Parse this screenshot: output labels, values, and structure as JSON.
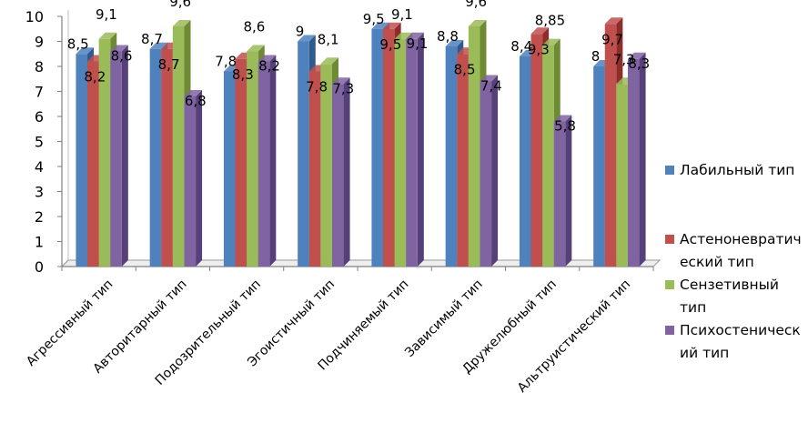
{
  "chart_data": {
    "type": "bar",
    "title": "",
    "xlabel": "",
    "ylabel": "",
    "ylim": [
      0,
      10
    ],
    "yticks": [
      0,
      1,
      2,
      3,
      4,
      5,
      6,
      7,
      8,
      9,
      10
    ],
    "grid": false,
    "legend_position": "right",
    "categories": [
      "Агрессивный тип",
      "Авторитарный тип",
      "Подозрительный тип",
      "Эгоистичный тип",
      "Подчиняемый тип",
      "Зависимый тип",
      "Дружелюбный тип",
      "Альтруистический тип"
    ],
    "series": [
      {
        "name": "Лабильный тип",
        "legend_lines": [
          "Лабильный тип"
        ],
        "color": "#4F81BD",
        "side_color": "#2F5A8E",
        "values": [
          8.5,
          8.7,
          7.8,
          9,
          9.5,
          8.8,
          8.4,
          8
        ],
        "labels": [
          "8,5",
          "8,7",
          "7,8",
          "9",
          "9,5",
          "8,8",
          "8,4",
          "8"
        ]
      },
      {
        "name": "Астеноневратический тип",
        "legend_lines": [
          "Астеноневратич",
          "еский тип"
        ],
        "color": "#C0504D",
        "side_color": "#8C2D2B",
        "values": [
          8.2,
          8.7,
          8.3,
          7.8,
          9.5,
          8.5,
          9.3,
          9.7
        ],
        "labels": [
          "8,2",
          "8,7",
          "8,3",
          "7,8",
          "9,5",
          "8,5",
          "9,3",
          "9,7"
        ]
      },
      {
        "name": "Сензетивный тип",
        "legend_lines": [
          "Сензетивный",
          "тип"
        ],
        "color": "#9BBB59",
        "side_color": "#6E8A35",
        "values": [
          9.1,
          9.6,
          8.6,
          8.1,
          9.1,
          9.6,
          8.85,
          7.3
        ],
        "labels": [
          "9,1",
          "9,6",
          "8,6",
          "8,1",
          "9,1",
          "9,6",
          "8,85",
          "7,3"
        ]
      },
      {
        "name": "Психостенический тип",
        "legend_lines": [
          "Психостеническ",
          "ий тип"
        ],
        "color": "#8064A2",
        "side_color": "#56407A",
        "values": [
          8.6,
          6.8,
          8.2,
          7.3,
          9.1,
          7.4,
          5.8,
          8.3
        ],
        "labels": [
          "8,6",
          "6,8",
          "8,2",
          "7,3",
          "9,1",
          "7,4",
          "5,8",
          "8,3"
        ]
      }
    ]
  }
}
